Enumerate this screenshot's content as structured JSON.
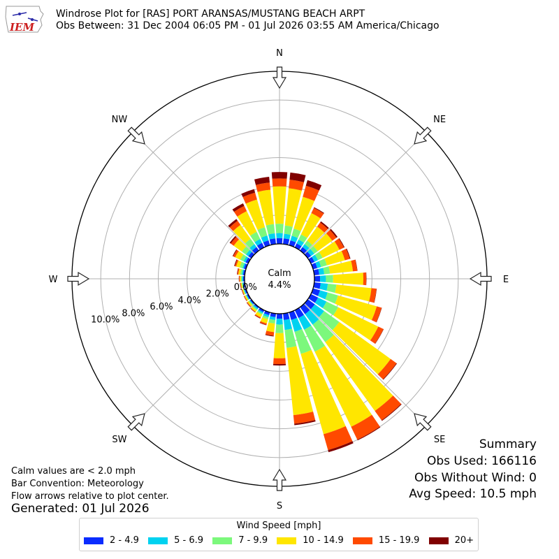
{
  "header": {
    "title": "Windrose Plot for [RAS] PORT ARANSAS/MUSTANG BEACH ARPT",
    "subtitle": "Obs Between: 31 Dec 2004 06:05 PM - 01 Jul 2026 03:55 AM America/Chicago",
    "logo_text": "IEM"
  },
  "notes": {
    "calm": "Calm values are < 2.0 mph",
    "bar_convention": "Bar Convention: Meteorology",
    "flow_arrows": "Flow arrows relative to plot center.",
    "generated": "Generated: 01 Jul 2026"
  },
  "summary": {
    "title": "Summary",
    "obs_used": "Obs Used: 166116",
    "obs_without_wind": "Obs Without Wind: 0",
    "avg_speed": "Avg Speed: 10.5 mph"
  },
  "chart_data": {
    "type": "windrose",
    "direction_labels": [
      "N",
      "NE",
      "E",
      "SE",
      "S",
      "SW",
      "W",
      "NW"
    ],
    "radial_tick_labels": [
      "0.0%",
      "2.0%",
      "4.0%",
      "6.0%",
      "8.0%",
      "10.0%"
    ],
    "radial_ticks": [
      0,
      2,
      4,
      6,
      8,
      10
    ],
    "rmax": 12,
    "calm_label": "Calm",
    "calm_value_label": "4.4%",
    "legend_title": "Wind Speed [mph]",
    "bins": [
      {
        "label": "2 - 4.9",
        "color": "#0a2cff"
      },
      {
        "label": "5 - 6.9",
        "color": "#00d2f0"
      },
      {
        "label": "7 - 9.9",
        "color": "#7cf87c"
      },
      {
        "label": "10 - 14.9",
        "color": "#ffe600"
      },
      {
        "label": "15 - 19.9",
        "color": "#ff4a00"
      },
      {
        "label": "20+",
        "color": "#800000"
      }
    ],
    "directions_deg": [
      0,
      10,
      20,
      30,
      40,
      50,
      60,
      70,
      80,
      90,
      100,
      110,
      120,
      130,
      140,
      150,
      160,
      170,
      180,
      190,
      200,
      210,
      220,
      230,
      240,
      250,
      260,
      270,
      280,
      290,
      300,
      310,
      320,
      330,
      340,
      350
    ],
    "cumulative_percent": [
      [
        0.4,
        0.75,
        1.4,
        4.0,
        4.55,
        5.0
      ],
      [
        0.4,
        0.72,
        1.3,
        3.9,
        4.5,
        5.0
      ],
      [
        0.35,
        0.68,
        1.2,
        3.5,
        4.3,
        4.7
      ],
      [
        0.3,
        0.6,
        1.0,
        2.65,
        3.05,
        3.1
      ],
      [
        0.3,
        0.55,
        0.85,
        2.05,
        2.4,
        2.5
      ],
      [
        0.28,
        0.55,
        0.85,
        2.1,
        2.45,
        2.55
      ],
      [
        0.28,
        0.55,
        0.9,
        2.2,
        2.55,
        2.6
      ],
      [
        0.3,
        0.58,
        1.0,
        2.3,
        2.65,
        2.7
      ],
      [
        0.35,
        0.7,
        1.1,
        2.7,
        3.0,
        3.02
      ],
      [
        0.4,
        0.8,
        1.3,
        3.4,
        3.6,
        3.62
      ],
      [
        0.45,
        0.95,
        1.55,
        4.0,
        4.35,
        4.37
      ],
      [
        0.5,
        1.05,
        1.8,
        4.6,
        4.95,
        4.97
      ],
      [
        0.55,
        1.2,
        2.1,
        5.2,
        5.6,
        5.62
      ],
      [
        0.6,
        1.4,
        2.7,
        7.1,
        7.6,
        7.64
      ],
      [
        0.6,
        1.5,
        3.0,
        8.9,
        9.7,
        9.75
      ],
      [
        0.6,
        1.5,
        3.2,
        9.0,
        10.0,
        10.05
      ],
      [
        0.55,
        1.4,
        3.0,
        8.8,
        9.95,
        10.1
      ],
      [
        0.45,
        1.15,
        2.4,
        7.1,
        7.7,
        7.8
      ],
      [
        0.35,
        0.75,
        1.35,
        3.1,
        3.5,
        3.6
      ],
      [
        0.25,
        0.45,
        0.7,
        1.3,
        1.55,
        1.6
      ],
      [
        0.2,
        0.35,
        0.5,
        0.8,
        0.9,
        0.93
      ],
      [
        0.15,
        0.25,
        0.35,
        0.55,
        0.62,
        0.65
      ],
      [
        0.1,
        0.2,
        0.28,
        0.4,
        0.45,
        0.47
      ],
      [
        0.1,
        0.15,
        0.22,
        0.33,
        0.38,
        0.4
      ],
      [
        0.1,
        0.15,
        0.2,
        0.28,
        0.32,
        0.34
      ],
      [
        0.1,
        0.15,
        0.2,
        0.26,
        0.3,
        0.32
      ],
      [
        0.1,
        0.15,
        0.22,
        0.28,
        0.32,
        0.34
      ],
      [
        0.1,
        0.17,
        0.25,
        0.33,
        0.38,
        0.4
      ],
      [
        0.12,
        0.2,
        0.32,
        0.45,
        0.52,
        0.55
      ],
      [
        0.15,
        0.25,
        0.45,
        0.7,
        0.8,
        0.85
      ],
      [
        0.2,
        0.35,
        0.6,
        1.0,
        1.15,
        1.2
      ],
      [
        0.25,
        0.45,
        0.8,
        1.5,
        1.75,
        1.85
      ],
      [
        0.3,
        0.55,
        1.0,
        2.2,
        2.55,
        2.7
      ],
      [
        0.35,
        0.65,
        1.2,
        2.8,
        3.2,
        3.4
      ],
      [
        0.35,
        0.7,
        1.3,
        3.3,
        3.8,
        4.05
      ],
      [
        0.4,
        0.75,
        1.4,
        3.8,
        4.3,
        4.7
      ]
    ]
  }
}
